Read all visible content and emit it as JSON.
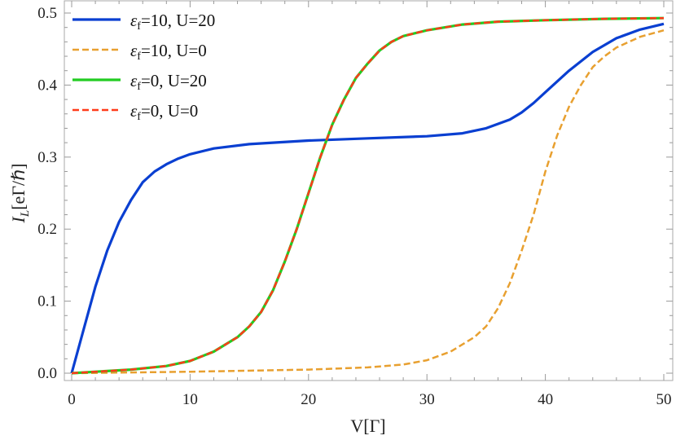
{
  "chart_data": {
    "type": "line",
    "xlabel": "V[Γ]",
    "ylabel_main": "I",
    "ylabel_sub": "L",
    "ylabel_rest": "[eΓ/ℏ]",
    "xlim": [
      0,
      50
    ],
    "ylim": [
      0,
      0.5
    ],
    "xticks": [
      "0",
      "10",
      "20",
      "30",
      "40",
      "50"
    ],
    "yticks": [
      "0.0",
      "0.1",
      "0.2",
      "0.3",
      "0.4",
      "0.5"
    ],
    "grid": false,
    "legend_position": "top-left",
    "series": [
      {
        "name_pre": "ε",
        "name_sub": "f",
        "name_post": "=10, U=20",
        "color": "#0a3fd1",
        "dash": false,
        "x": [
          0,
          1,
          2,
          3,
          4,
          5,
          6,
          7,
          8,
          9,
          10,
          12,
          15,
          20,
          25,
          30,
          33,
          35,
          37,
          38,
          39,
          40,
          42,
          44,
          46,
          48,
          50
        ],
        "y": [
          0,
          0.06,
          0.12,
          0.17,
          0.21,
          0.24,
          0.265,
          0.28,
          0.29,
          0.298,
          0.304,
          0.312,
          0.318,
          0.323,
          0.326,
          0.329,
          0.333,
          0.34,
          0.352,
          0.362,
          0.375,
          0.39,
          0.42,
          0.446,
          0.465,
          0.477,
          0.485
        ]
      },
      {
        "name_pre": "ε",
        "name_sub": "f",
        "name_post": "=10, U=0",
        "color": "#e8a030",
        "dash": true,
        "x": [
          0,
          10,
          20,
          25,
          28,
          30,
          32,
          34,
          35,
          36,
          37,
          38,
          39,
          40,
          41,
          42,
          43,
          44,
          45,
          46,
          48,
          50
        ],
        "y": [
          0,
          0.002,
          0.005,
          0.008,
          0.012,
          0.018,
          0.03,
          0.05,
          0.065,
          0.09,
          0.125,
          0.17,
          0.22,
          0.28,
          0.33,
          0.37,
          0.4,
          0.425,
          0.44,
          0.452,
          0.467,
          0.476
        ]
      },
      {
        "name_pre": "ε",
        "name_sub": "f",
        "name_post": "=0, U=20",
        "color": "#22cc22",
        "dash": false,
        "x": [
          0,
          5,
          8,
          10,
          12,
          14,
          15,
          16,
          17,
          18,
          19,
          20,
          21,
          22,
          23,
          24,
          25,
          26,
          27,
          28,
          30,
          33,
          36,
          40,
          45,
          50
        ],
        "y": [
          0,
          0.005,
          0.01,
          0.017,
          0.03,
          0.05,
          0.065,
          0.085,
          0.115,
          0.155,
          0.2,
          0.25,
          0.3,
          0.345,
          0.38,
          0.41,
          0.43,
          0.448,
          0.46,
          0.468,
          0.476,
          0.484,
          0.488,
          0.49,
          0.492,
          0.493
        ]
      },
      {
        "name_pre": "ε",
        "name_sub": "f",
        "name_post": "=0, U=0",
        "color": "#ff3b1a",
        "dash": true,
        "x": [
          0,
          5,
          8,
          10,
          12,
          14,
          15,
          16,
          17,
          18,
          19,
          20,
          21,
          22,
          23,
          24,
          25,
          26,
          27,
          28,
          30,
          33,
          36,
          40,
          45,
          50
        ],
        "y": [
          0,
          0.005,
          0.01,
          0.017,
          0.03,
          0.05,
          0.065,
          0.085,
          0.115,
          0.155,
          0.2,
          0.25,
          0.3,
          0.345,
          0.38,
          0.41,
          0.43,
          0.448,
          0.46,
          0.468,
          0.476,
          0.484,
          0.488,
          0.49,
          0.492,
          0.493
        ]
      }
    ]
  }
}
